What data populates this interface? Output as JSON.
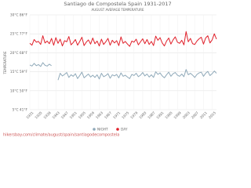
{
  "chart_data": {
    "type": "line",
    "title": "Santiago de Compostela Spain 1931-2017",
    "subtitle": "AUGUST AVERAGE TEMPERATURE",
    "y_label": "TEMPERATURE",
    "footer": "hikersbay.com/climate/august/spain/santiagodecompostela",
    "grid": true,
    "legend": "bottom",
    "xlim": [
      1931,
      2017
    ],
    "ylim": [
      5,
      30
    ],
    "yticks": [
      {
        "value": 5,
        "label": "5°C 41°F"
      },
      {
        "value": 10,
        "label": "10°C 50°F"
      },
      {
        "value": 15,
        "label": "15°C 59°F"
      },
      {
        "value": 20,
        "label": "20°C 68°F"
      },
      {
        "value": 25,
        "label": "25°C 77°F"
      },
      {
        "value": 30,
        "label": "30°C 86°F"
      }
    ],
    "xticks": [
      1931,
      1935,
      1939,
      1943,
      1947,
      1951,
      1955,
      1959,
      1963,
      1967,
      1971,
      1975,
      1979,
      1983,
      1987,
      1991,
      1995,
      1999,
      2003,
      2007,
      2011,
      2015
    ],
    "x": [
      1931,
      1932,
      1933,
      1934,
      1935,
      1936,
      1937,
      1938,
      1939,
      1940,
      1941,
      1942,
      1943,
      1944,
      1945,
      1946,
      1947,
      1948,
      1949,
      1950,
      1951,
      1952,
      1953,
      1954,
      1955,
      1956,
      1957,
      1958,
      1959,
      1960,
      1961,
      1962,
      1963,
      1964,
      1965,
      1966,
      1967,
      1968,
      1969,
      1970,
      1971,
      1972,
      1973,
      1974,
      1975,
      1976,
      1977,
      1978,
      1979,
      1980,
      1981,
      1982,
      1983,
      1984,
      1985,
      1986,
      1987,
      1988,
      1989,
      1990,
      1991,
      1992,
      1993,
      1994,
      1995,
      1996,
      1997,
      1998,
      1999,
      2000,
      2001,
      2002,
      2003,
      2004,
      2005,
      2006,
      2007,
      2008,
      2009,
      2010,
      2011,
      2012,
      2013,
      2014,
      2015,
      2016,
      2017
    ],
    "series": [
      {
        "name": "NIGHT",
        "color": "#8fa9b9",
        "values": [
          16.8,
          16.5,
          17.2,
          16.6,
          16.9,
          16.4,
          17.4,
          16.7,
          16.5,
          17.0,
          16.6,
          null,
          null,
          12.8,
          14.6,
          13.9,
          14.3,
          14.8,
          13.5,
          14.2,
          13.8,
          14.5,
          13.2,
          14.0,
          14.9,
          13.4,
          13.9,
          14.4,
          13.6,
          14.1,
          13.5,
          14.2,
          13.1,
          14.6,
          13.7,
          14.0,
          14.5,
          13.3,
          14.2,
          13.9,
          14.3,
          13.4,
          14.7,
          13.8,
          14.1,
          13.6,
          13.2,
          14.3,
          14.0,
          14.6,
          13.7,
          14.1,
          14.8,
          13.9,
          14.4,
          13.6,
          14.2,
          13.5,
          15.0,
          14.3,
          14.7,
          13.9,
          13.4,
          14.2,
          14.9,
          13.8,
          14.5,
          14.8,
          14.1,
          13.8,
          14.4,
          13.7,
          15.6,
          14.2,
          14.6,
          14.1,
          13.5,
          14.3,
          14.7,
          14.9,
          13.8,
          14.6,
          15.1,
          14.0,
          14.5,
          15.2,
          14.6
        ]
      },
      {
        "name": "DAY",
        "color": "#e0202a",
        "values": [
          22.5,
          22.0,
          23.5,
          22.8,
          23.0,
          22.2,
          24.5,
          22.6,
          23.1,
          22.4,
          23.8,
          22.0,
          24.0,
          22.5,
          23.6,
          21.8,
          23.2,
          22.9,
          24.3,
          22.1,
          22.7,
          23.5,
          22.0,
          23.0,
          24.1,
          21.9,
          22.8,
          23.4,
          22.3,
          23.9,
          22.4,
          23.1,
          21.8,
          23.6,
          22.2,
          22.9,
          23.8,
          22.0,
          23.3,
          22.6,
          23.2,
          21.9,
          24.2,
          22.5,
          23.0,
          22.3,
          21.7,
          23.1,
          22.8,
          23.6,
          22.1,
          22.9,
          23.7,
          22.4,
          23.5,
          22.2,
          23.0,
          21.9,
          24.4,
          23.3,
          24.0,
          22.6,
          21.8,
          23.1,
          23.9,
          22.3,
          23.4,
          24.2,
          22.8,
          22.5,
          23.3,
          22.1,
          25.6,
          22.9,
          23.8,
          22.4,
          22.2,
          23.1,
          23.7,
          24.1,
          22.3,
          23.9,
          24.5,
          22.6,
          23.4,
          25.0,
          23.6
        ]
      }
    ]
  }
}
